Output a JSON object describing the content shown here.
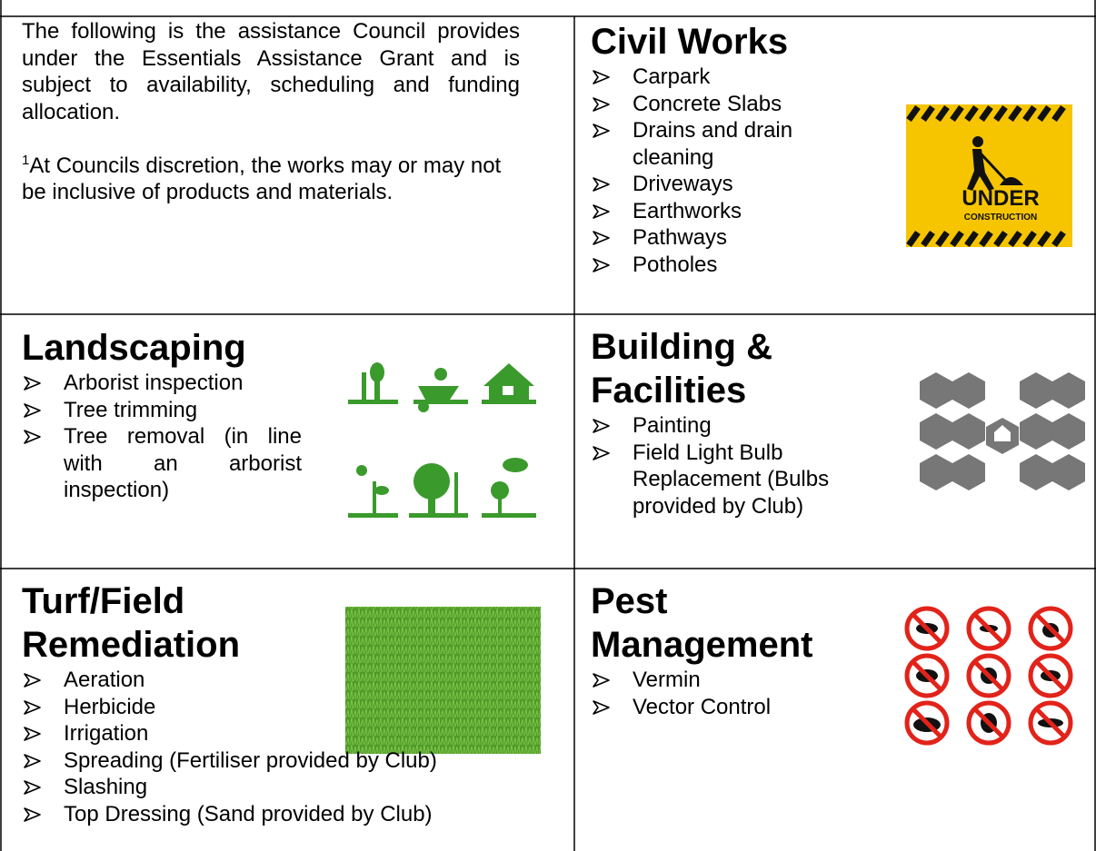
{
  "intro": {
    "text": "The following is the assistance Council provides under the Essentials Assistance Grant and is subject to availability, scheduling and funding allocation.",
    "footnote_marker": "1",
    "footnote_text": "At Councils discretion, the works may or may not be inclusive of products and materials."
  },
  "sections": [
    {
      "title": "Civil Works",
      "items": [
        "Carpark",
        "Concrete Slabs",
        "Drains and drain cleaning",
        "Driveways",
        "Earthworks",
        "Pathways",
        "Potholes"
      ],
      "image_text": [
        "UNDER",
        "CONSTRUCTION"
      ]
    },
    {
      "title": "Landscaping",
      "items": [
        "Arborist inspection",
        "Tree trimming",
        "Tree removal (in line with an arborist inspection)"
      ]
    },
    {
      "title": "Building & Facilities",
      "items": [
        "Painting",
        "Field Light Bulb Replacement (Bulbs provided by Club)"
      ]
    },
    {
      "title": "Turf/Field Remediation",
      "items": [
        "Aeration",
        "Herbicide",
        "Irrigation",
        "Spreading (Fertiliser provided by Club)",
        "Slashing",
        "Top Dressing (Sand provided by Club)"
      ]
    },
    {
      "title": "Pest Management",
      "items": [
        "Vermin",
        "Vector Control"
      ]
    }
  ]
}
